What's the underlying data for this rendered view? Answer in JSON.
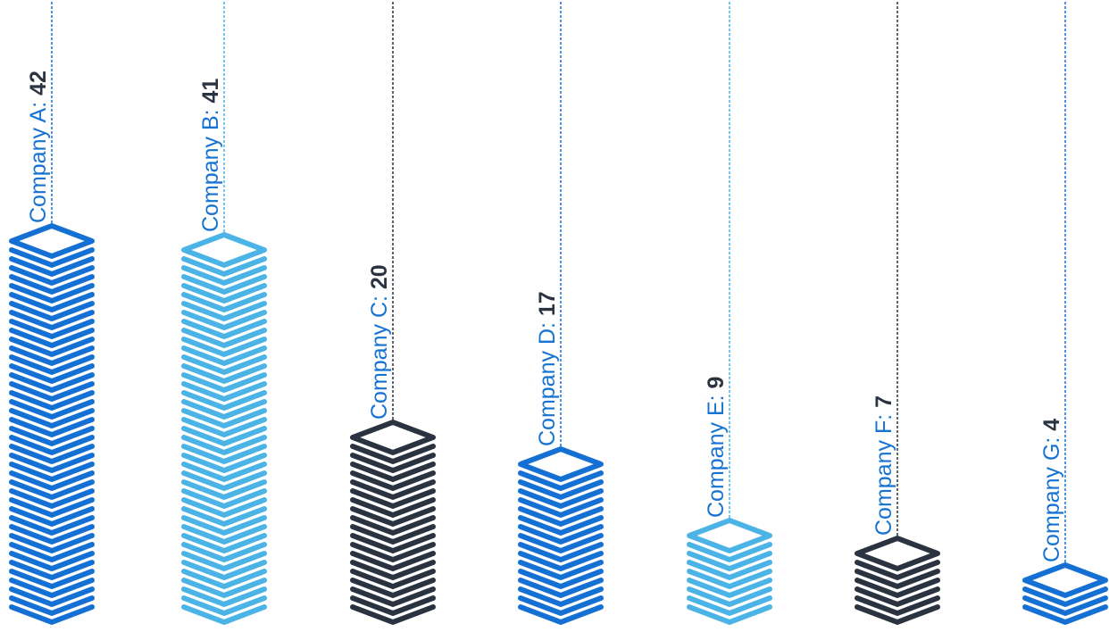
{
  "chart_data": {
    "type": "bar",
    "categories": [
      "Company A",
      "Company B",
      "Company C",
      "Company D",
      "Company E",
      "Company F",
      "Company G"
    ],
    "values": [
      42,
      41,
      20,
      17,
      9,
      7,
      4
    ],
    "labels": [
      {
        "name": "Company A:",
        "value": "42"
      },
      {
        "name": "Company B:",
        "value": "41"
      },
      {
        "name": "Company C:",
        "value": "20"
      },
      {
        "name": "Company D:",
        "value": "17"
      },
      {
        "name": "Company E:",
        "value": "9"
      },
      {
        "name": "Company F:",
        "value": "7"
      },
      {
        "name": "Company G:",
        "value": "4"
      }
    ],
    "bar_colors": [
      "#1570d4",
      "#4bb3e6",
      "#2b3340",
      "#1570d4",
      "#4bb3e6",
      "#2b3340",
      "#1570d4"
    ],
    "label_color": "#1673d1",
    "value_color": "#2b3340",
    "title": "",
    "xlabel": "",
    "ylabel": "",
    "grid": false,
    "legend": "none"
  }
}
